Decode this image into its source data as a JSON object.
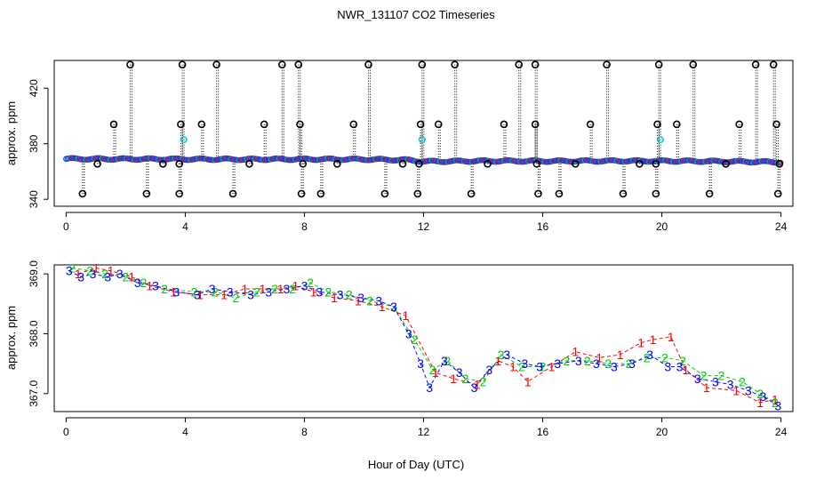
{
  "figure": {
    "title": "NWR_131107  CO2 Timeseries",
    "xlabel": "Hour of Day (UTC)"
  },
  "colors": {
    "series_1": "#ff0000",
    "series_2": "#00cc00",
    "series_3": "#0000ff",
    "top_points": "#1a30ff",
    "flagged": "#000000",
    "highlight": "#00cccc"
  },
  "chart_data": [
    {
      "type": "scatter",
      "panel": "top",
      "ylabel": "approx. ppm",
      "xlim": [
        -0.4,
        24.4
      ],
      "ylim": [
        335,
        440
      ],
      "x_ticks": [
        "0",
        "4",
        "8",
        "12",
        "16",
        "20",
        "24"
      ],
      "y_ticks": [
        "340",
        "380",
        "420"
      ],
      "baseline_series": [
        {
          "x": 0,
          "y": 369.1
        },
        {
          "x": 2,
          "y": 369.0
        },
        {
          "x": 4,
          "y": 368.9
        },
        {
          "x": 6,
          "y": 368.8
        },
        {
          "x": 8,
          "y": 368.9
        },
        {
          "x": 10,
          "y": 368.8
        },
        {
          "x": 11.5,
          "y": 368.3
        },
        {
          "x": 12,
          "y": 367.2
        },
        {
          "x": 14,
          "y": 367.6
        },
        {
          "x": 16,
          "y": 367.5
        },
        {
          "x": 18,
          "y": 367.6
        },
        {
          "x": 20,
          "y": 367.6
        },
        {
          "x": 22,
          "y": 367.3
        },
        {
          "x": 24,
          "y": 366.8
        }
      ],
      "flagged_high": [
        {
          "x": 2.15,
          "y": 437
        },
        {
          "x": 3.9,
          "y": 437
        },
        {
          "x": 5.05,
          "y": 437
        },
        {
          "x": 7.25,
          "y": 437
        },
        {
          "x": 7.8,
          "y": 437
        },
        {
          "x": 10.15,
          "y": 437
        },
        {
          "x": 11.95,
          "y": 437
        },
        {
          "x": 13.05,
          "y": 437
        },
        {
          "x": 15.2,
          "y": 437
        },
        {
          "x": 15.75,
          "y": 437
        },
        {
          "x": 18.15,
          "y": 437
        },
        {
          "x": 19.9,
          "y": 437
        },
        {
          "x": 21.05,
          "y": 437
        },
        {
          "x": 23.15,
          "y": 437
        },
        {
          "x": 23.75,
          "y": 437
        }
      ],
      "flagged_mid": [
        {
          "x": 1.6,
          "y": 394
        },
        {
          "x": 3.85,
          "y": 394
        },
        {
          "x": 4.55,
          "y": 394
        },
        {
          "x": 6.65,
          "y": 394
        },
        {
          "x": 7.85,
          "y": 394
        },
        {
          "x": 9.65,
          "y": 394
        },
        {
          "x": 11.9,
          "y": 394
        },
        {
          "x": 12.5,
          "y": 394
        },
        {
          "x": 14.7,
          "y": 394
        },
        {
          "x": 15.75,
          "y": 394
        },
        {
          "x": 17.6,
          "y": 394
        },
        {
          "x": 19.85,
          "y": 394
        },
        {
          "x": 20.5,
          "y": 394
        },
        {
          "x": 22.6,
          "y": 394
        },
        {
          "x": 23.85,
          "y": 394
        }
      ],
      "flagged_low": [
        {
          "x": 0.55,
          "y": 344
        },
        {
          "x": 2.7,
          "y": 344
        },
        {
          "x": 3.8,
          "y": 344
        },
        {
          "x": 5.6,
          "y": 344
        },
        {
          "x": 7.9,
          "y": 344
        },
        {
          "x": 8.55,
          "y": 344
        },
        {
          "x": 10.7,
          "y": 344
        },
        {
          "x": 11.8,
          "y": 344
        },
        {
          "x": 13.6,
          "y": 344
        },
        {
          "x": 15.85,
          "y": 344
        },
        {
          "x": 16.55,
          "y": 344
        },
        {
          "x": 18.7,
          "y": 344
        },
        {
          "x": 19.8,
          "y": 344
        },
        {
          "x": 21.6,
          "y": 344
        },
        {
          "x": 23.9,
          "y": 344
        }
      ],
      "flagged_near": [
        {
          "x": 1.05,
          "y": 365.5
        },
        {
          "x": 3.25,
          "y": 365.5
        },
        {
          "x": 3.8,
          "y": 365.5
        },
        {
          "x": 6.15,
          "y": 365.5
        },
        {
          "x": 7.95,
          "y": 365.5
        },
        {
          "x": 9.1,
          "y": 365.5
        },
        {
          "x": 11.3,
          "y": 365.5
        },
        {
          "x": 11.85,
          "y": 365.5
        },
        {
          "x": 14.15,
          "y": 365.5
        },
        {
          "x": 15.8,
          "y": 365.5
        },
        {
          "x": 17.1,
          "y": 365.5
        },
        {
          "x": 19.25,
          "y": 365.5
        },
        {
          "x": 19.8,
          "y": 365.5
        },
        {
          "x": 22.15,
          "y": 365.5
        },
        {
          "x": 23.95,
          "y": 365.5
        }
      ],
      "highlight_points": [
        {
          "x": 3.95,
          "y": 383
        },
        {
          "x": 11.95,
          "y": 383
        },
        {
          "x": 19.95,
          "y": 383
        }
      ]
    },
    {
      "type": "scatter",
      "panel": "bottom",
      "ylabel": "approx. ppm",
      "xlim": [
        -0.4,
        24.4
      ],
      "ylim": [
        366.7,
        369.15
      ],
      "x_ticks": [
        "0",
        "4",
        "8",
        "12",
        "16",
        "20",
        "24"
      ],
      "y_ticks": [
        "367.0",
        "368.0",
        "369.0"
      ],
      "legend_markers": [
        "1",
        "2",
        "3"
      ],
      "series": [
        {
          "name": "1",
          "x": [
            0.4,
            1.0,
            1.5,
            2.2,
            2.8,
            3.6,
            4.5,
            5.3,
            6.0,
            6.6,
            7.2,
            7.7,
            8.3,
            9.0,
            9.8,
            10.6,
            11.4,
            12.4,
            13.0,
            13.8,
            14.5,
            15.0,
            15.5,
            16.3,
            17.1,
            17.9,
            18.6,
            19.3,
            19.7,
            20.3,
            20.8,
            21.5,
            22.5,
            23.3,
            23.8
          ],
          "y": [
            369.0,
            369.1,
            369.05,
            368.95,
            368.8,
            368.7,
            368.65,
            368.65,
            368.75,
            368.75,
            368.75,
            368.8,
            368.7,
            368.6,
            368.55,
            368.45,
            368.3,
            367.35,
            367.25,
            367.15,
            367.55,
            367.45,
            367.2,
            367.45,
            367.7,
            367.6,
            367.65,
            367.85,
            367.9,
            367.95,
            367.4,
            367.1,
            367.05,
            366.85,
            366.9
          ]
        },
        {
          "name": "2",
          "x": [
            0.2,
            0.8,
            1.3,
            2.0,
            2.6,
            3.3,
            4.3,
            5.0,
            5.7,
            6.4,
            7.0,
            7.6,
            8.2,
            8.8,
            9.5,
            10.2,
            11.0,
            11.7,
            12.3,
            12.8,
            13.4,
            14.0,
            14.6,
            15.3,
            16.0,
            16.8,
            17.5,
            18.2,
            18.9,
            19.5,
            20.1,
            20.7,
            21.4,
            22.0,
            22.7,
            23.3,
            23.8
          ],
          "y": [
            369.1,
            369.05,
            369.0,
            368.95,
            368.85,
            368.75,
            368.7,
            368.7,
            368.6,
            368.7,
            368.75,
            368.75,
            368.85,
            368.7,
            368.65,
            368.55,
            368.45,
            367.9,
            367.4,
            367.55,
            367.25,
            367.2,
            367.65,
            367.45,
            367.45,
            367.55,
            367.55,
            367.5,
            367.5,
            367.6,
            367.6,
            367.55,
            367.3,
            367.3,
            367.2,
            367.0,
            366.85
          ]
        },
        {
          "name": "3",
          "x": [
            0.1,
            0.5,
            0.9,
            1.4,
            1.8,
            2.4,
            3.0,
            3.7,
            4.4,
            4.9,
            5.5,
            6.2,
            6.8,
            7.4,
            8.0,
            8.5,
            9.2,
            9.9,
            10.5,
            11.0,
            11.5,
            11.9,
            12.2,
            12.7,
            13.2,
            13.7,
            14.2,
            14.8,
            15.4,
            15.9,
            16.5,
            17.2,
            17.8,
            18.4,
            19.0,
            19.6,
            20.2,
            20.6,
            21.2,
            21.8,
            22.3,
            22.9,
            23.4,
            23.9
          ],
          "y": [
            369.05,
            368.95,
            369.0,
            368.95,
            369.0,
            368.85,
            368.8,
            368.7,
            368.65,
            368.75,
            368.7,
            368.65,
            368.7,
            368.75,
            368.8,
            368.7,
            368.65,
            368.6,
            368.55,
            368.45,
            368.0,
            367.5,
            367.1,
            367.55,
            367.35,
            367.1,
            367.4,
            367.65,
            367.5,
            367.45,
            367.5,
            367.55,
            367.5,
            367.45,
            367.5,
            367.65,
            367.45,
            367.45,
            367.25,
            367.2,
            367.15,
            367.05,
            366.95,
            366.8
          ]
        }
      ]
    }
  ]
}
